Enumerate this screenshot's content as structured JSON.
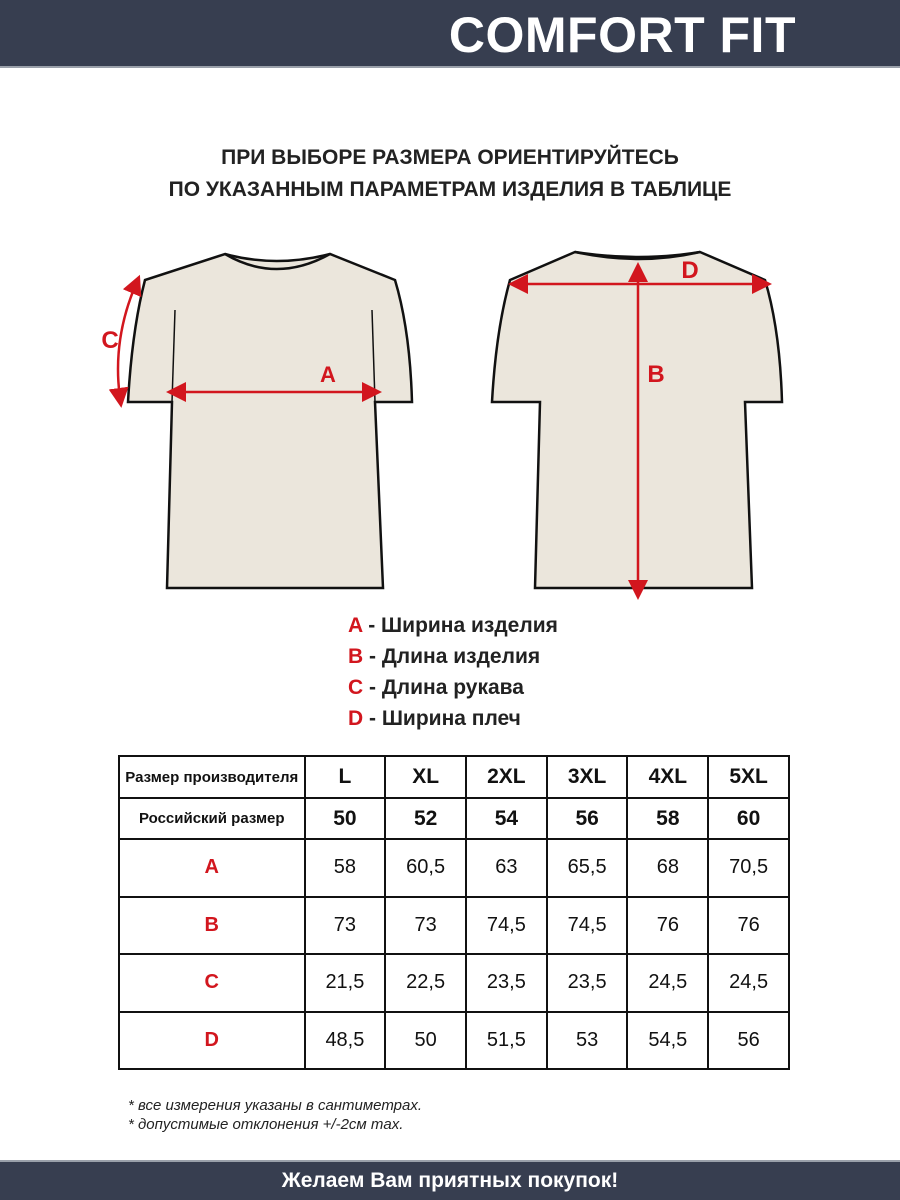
{
  "header": {
    "title": "COMFORT FIT"
  },
  "subtitle": [
    "ПРИ ВЫБОРЕ РАЗМЕРА ОРИЕНТИРУЙТЕСЬ",
    "ПО УКАЗАННЫМ ПАРАМЕТРАМ ИЗДЕЛИЯ В ТАБЛИЦЕ"
  ],
  "diagram": {
    "front_labels": {
      "a": "A",
      "c": "C"
    },
    "back_labels": {
      "b": "B",
      "d": "D"
    },
    "shirt_color": "#ebe6dc",
    "arrow_color": "#d2161e"
  },
  "legend": [
    {
      "key": "A",
      "text": " - Ширина изделия"
    },
    {
      "key": "B",
      "text": " - Длина изделия"
    },
    {
      "key": "C",
      "text": " - Длина рукава"
    },
    {
      "key": "D",
      "text": " - Ширина плеч"
    }
  ],
  "table": {
    "manufacturer_label": "Размер производителя",
    "manufacturer_sizes": [
      "L",
      "XL",
      "2XL",
      "3XL",
      "4XL",
      "5XL"
    ],
    "russian_label": "Российский размер",
    "russian_sizes": [
      "50",
      "52",
      "54",
      "56",
      "58",
      "60"
    ],
    "rows": [
      {
        "label": "A",
        "values": [
          "58",
          "60,5",
          "63",
          "65,5",
          "68",
          "70,5"
        ]
      },
      {
        "label": "B",
        "values": [
          "73",
          "73",
          "74,5",
          "74,5",
          "76",
          "76"
        ]
      },
      {
        "label": "C",
        "values": [
          "21,5",
          "22,5",
          "23,5",
          "23,5",
          "24,5",
          "24,5"
        ]
      },
      {
        "label": "D",
        "values": [
          "48,5",
          "50",
          "51,5",
          "53",
          "54,5",
          "56"
        ]
      }
    ]
  },
  "notes": [
    "* все измерения указаны в сантиметрах.",
    "* допустимые отклонения +/-2см max."
  ],
  "footer": {
    "text": "Желаем Вам приятных покупок!"
  }
}
